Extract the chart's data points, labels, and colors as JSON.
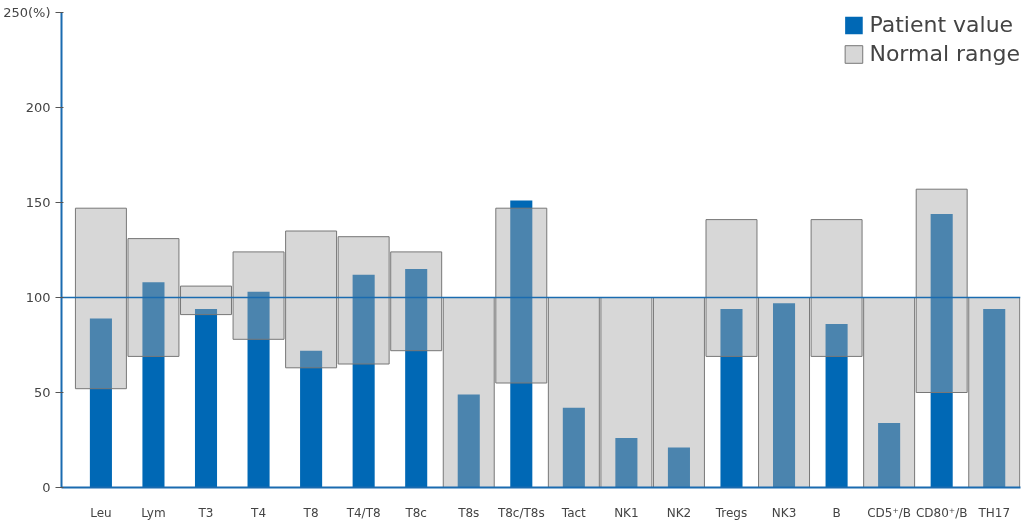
{
  "chart_data": {
    "type": "bar",
    "categories": [
      "Leu",
      "Lym",
      "T3",
      "T4",
      "T8",
      "T4/T8",
      "T8c",
      "T8s",
      "T8c/T8s",
      "Tact",
      "NK1",
      "NK2",
      "Tregs",
      "NK3",
      "B",
      "CD5⁺/B",
      "CD80⁺/B",
      "TH17"
    ],
    "series": [
      {
        "name": "Patient value",
        "color": "#0068b5",
        "values": [
          89,
          108,
          94,
          103,
          72,
          112,
          115,
          49,
          151,
          42,
          26,
          21,
          94,
          97,
          86,
          34,
          144,
          94
        ]
      },
      {
        "name": "Normal range",
        "color": "#a6a6a6",
        "base": [
          52,
          69,
          91,
          78,
          63,
          65,
          72,
          0,
          55,
          0,
          0,
          0,
          69,
          0,
          69,
          0,
          50,
          0
        ],
        "values": [
          95,
          62,
          15,
          46,
          72,
          67,
          52,
          100,
          92,
          100,
          100,
          100,
          72,
          100,
          72,
          100,
          107,
          100
        ]
      }
    ],
    "ylim": [
      0,
      250
    ],
    "yticks": [
      0,
      50,
      100,
      150,
      200,
      {
        "value": 250,
        "label": "250(%)"
      }
    ],
    "ref_lines": [
      {
        "axis": "y",
        "value": 100,
        "color": "#1a6bb0"
      }
    ],
    "grid": false,
    "legend": "top right"
  }
}
